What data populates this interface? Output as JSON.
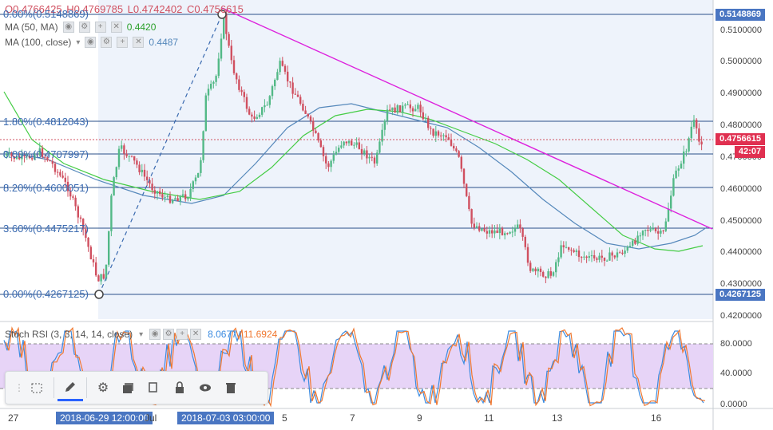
{
  "header": {
    "ohlc": {
      "open": "O0.4766425",
      "high": "H0.4769785",
      "low": "L0.4742402",
      "close": "C0.4756615"
    }
  },
  "indicators": {
    "ma50": {
      "name": "MA (50, MA)",
      "value": "0.4420"
    },
    "ma100": {
      "name": "MA (100, close)",
      "value": "0.4487"
    },
    "rsi": {
      "name": "Stoch RSI (3, 3, 14, 14, close)",
      "k": "8.0677",
      "d": "11.6924"
    }
  },
  "fib_labels": [
    {
      "text": "0.00%(0.5148869)"
    },
    {
      "text": "1.80%(0.4812043)"
    },
    {
      "text": "0.00%(0.4707997)"
    },
    {
      "text": "8.20%(0.4600051)"
    },
    {
      "text": "3.60%(0.4475217)"
    },
    {
      "text": "0.00%(0.4267125)"
    }
  ],
  "price_axis": {
    "ticks": [
      "0.5100000",
      "0.5000000",
      "0.4900000",
      "0.4800000",
      "0.4700000",
      "0.4600000",
      "0.4500000",
      "0.4400000",
      "0.4300000",
      "0.4200000"
    ],
    "tag_top": "0.5148869",
    "tag_last": "0.4756615",
    "tag_timer": "42:07",
    "tag_bottom": "0.4267125"
  },
  "rsi_axis": {
    "ticks": [
      "80.0000",
      "40.0000",
      "0.0000"
    ]
  },
  "time_axis": {
    "labels": [
      "27",
      "Jul",
      "5",
      "7",
      "9",
      "11",
      "13",
      "16"
    ],
    "tag1": "2018-06-29 12:00:00",
    "tag2": "2018-07-03 03:00:00"
  },
  "toolbar": {
    "items": [
      "drag-handle",
      "layout",
      "pencil",
      "settings",
      "stack",
      "copy",
      "lock",
      "eye",
      "trash"
    ]
  },
  "colors": {
    "up": "#53b987",
    "down": "#d05060",
    "ma50": "#44cc44",
    "ma100": "#5588bb",
    "trend": "#dd22dd",
    "fib": "#2a4f8a",
    "rsi_k": "#3b8be0",
    "rsi_d": "#f07830",
    "rsi_band": "#e7d4f7",
    "tag_blue": "#4a76c2",
    "tag_red": "#e03050"
  }
}
